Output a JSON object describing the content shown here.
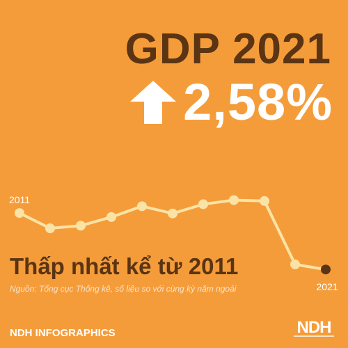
{
  "header": {
    "title": "GDP 2021",
    "growth_value": "2,58%",
    "arrow_icon": "up-arrow-icon"
  },
  "subtitle": "Thấp nhất kể từ 2011",
  "source": "Nguồn: Tổng cục Thống kê, số liệu so với cùng kỳ năm ngoái",
  "footer": {
    "brand": "NDH INFOGRAPHICS",
    "logo_text": "NDH"
  },
  "colors": {
    "background": "#F59C3A",
    "title": "#5A3413",
    "line": "#FBE3A6",
    "point": "#FBE3A6",
    "highlight_point": "#5A3413",
    "text_light": "#FFFFFF"
  },
  "chart_data": {
    "type": "line",
    "x": [
      2011,
      2012,
      2013,
      2014,
      2015,
      2016,
      2017,
      2018,
      2019,
      2020,
      2021
    ],
    "values": [
      6.24,
      5.25,
      5.42,
      5.98,
      6.68,
      6.21,
      6.81,
      7.08,
      7.02,
      2.91,
      2.58
    ],
    "tick_labels": [
      "2011",
      "2021"
    ],
    "highlight_index": 10,
    "ylim": [
      2.0,
      7.5
    ],
    "grid": false
  }
}
